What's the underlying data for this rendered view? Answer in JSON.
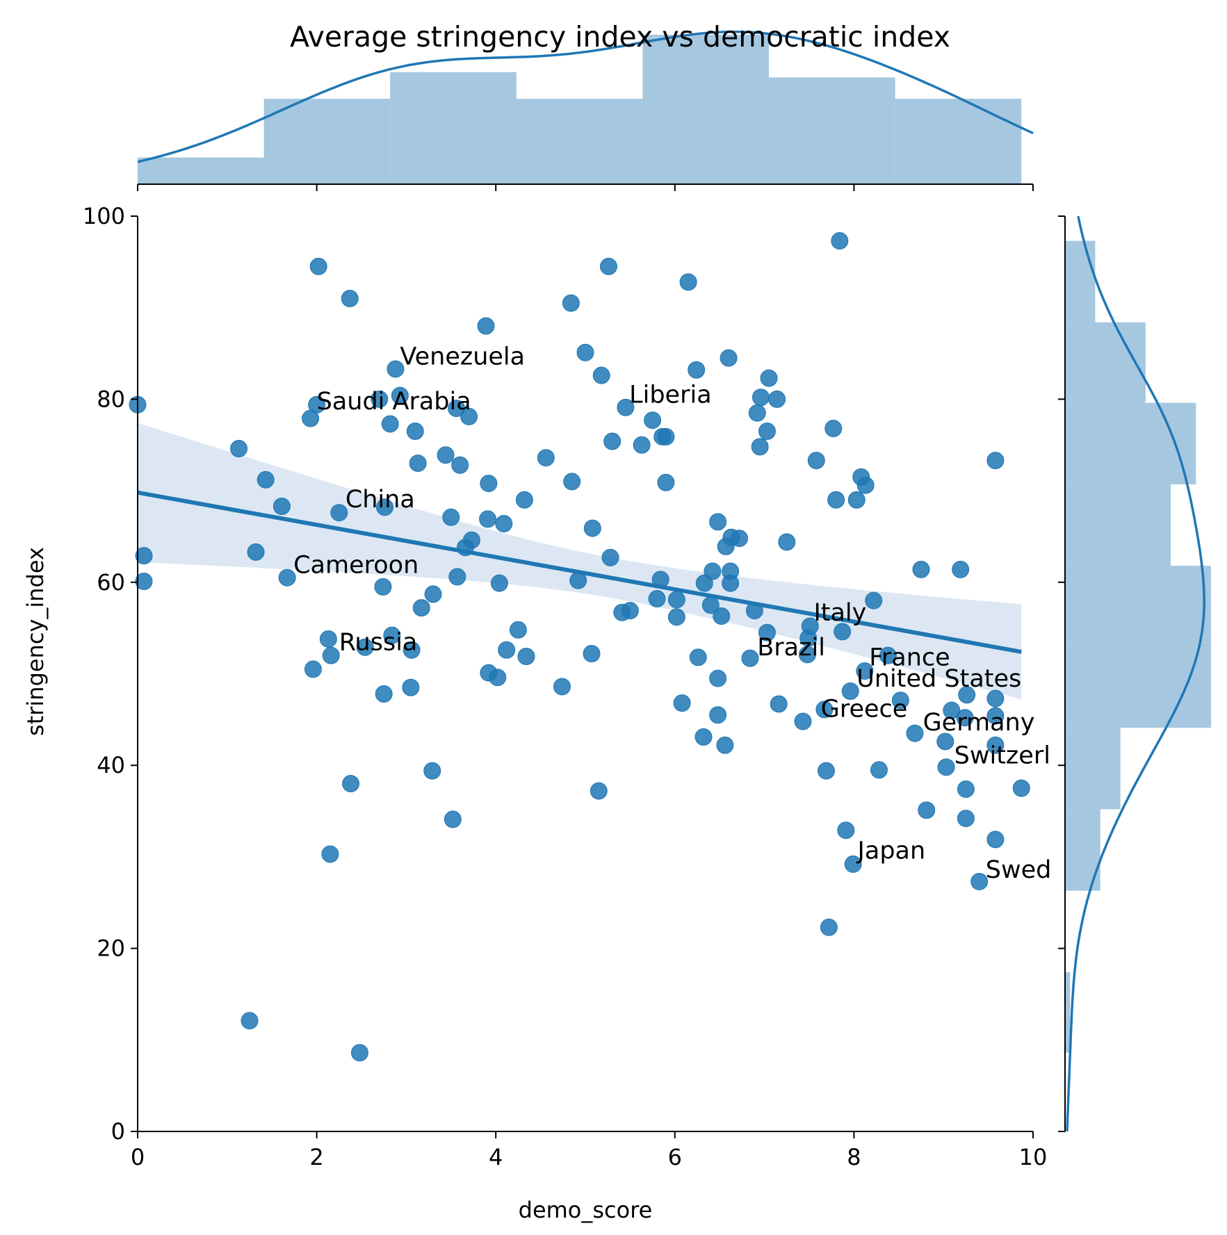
{
  "chart_data": {
    "type": "scatter",
    "title": "Average stringency index vs democratic index",
    "xlabel": "demo_score",
    "ylabel": "stringency_index",
    "xlim": [
      0,
      10
    ],
    "ylim": [
      0,
      100
    ],
    "xticks": [
      "0",
      "2",
      "4",
      "6",
      "8",
      "10"
    ],
    "yticks": [
      "0",
      "20",
      "40",
      "60",
      "80",
      "100"
    ],
    "regression": {
      "x": [
        0,
        9.87
      ],
      "y": [
        69.8,
        52.4
      ],
      "ci_low_at_0": 62.2,
      "ci_high_at_0": 77.4,
      "ci_low_at_end": 47.8,
      "ci_high_at_end": 58.2
    },
    "marginal_x_hist": {
      "bin_edges": [
        0,
        1.41,
        2.82,
        4.23,
        5.64,
        7.05,
        8.46,
        9.87
      ],
      "counts": [
        5,
        16,
        21,
        16,
        28,
        20,
        16
      ]
    },
    "marginal_y_hist": {
      "bin_edges": [
        8.6,
        17.4,
        26.3,
        35.2,
        44.1,
        52.9,
        61.8,
        70.7,
        79.6,
        88.4,
        97.3
      ],
      "counts": [
        1,
        0,
        7,
        11,
        29,
        29,
        21,
        26,
        16,
        6
      ]
    },
    "points": [
      [
        0.0,
        79.4
      ],
      [
        0.07,
        62.9
      ],
      [
        0.07,
        60.1
      ],
      [
        1.13,
        74.6
      ],
      [
        1.25,
        12.1
      ],
      [
        1.32,
        63.3
      ],
      [
        1.43,
        71.2
      ],
      [
        1.61,
        68.3
      ],
      [
        1.67,
        60.5
      ],
      [
        1.93,
        77.9
      ],
      [
        1.96,
        50.5
      ],
      [
        2.02,
        94.5
      ],
      [
        2.0,
        79.4
      ],
      [
        2.13,
        53.8
      ],
      [
        2.15,
        30.3
      ],
      [
        2.16,
        52.0
      ],
      [
        2.25,
        67.6
      ],
      [
        2.37,
        91.0
      ],
      [
        2.38,
        38.0
      ],
      [
        2.48,
        8.6
      ],
      [
        2.54,
        52.9
      ],
      [
        2.7,
        80.0
      ],
      [
        2.74,
        59.5
      ],
      [
        2.75,
        47.8
      ],
      [
        2.76,
        68.2
      ],
      [
        2.82,
        77.3
      ],
      [
        2.84,
        54.2
      ],
      [
        2.88,
        83.3
      ],
      [
        2.93,
        80.4
      ],
      [
        3.05,
        48.5
      ],
      [
        3.06,
        52.6
      ],
      [
        3.1,
        76.5
      ],
      [
        3.13,
        73.0
      ],
      [
        3.17,
        57.2
      ],
      [
        3.29,
        39.4
      ],
      [
        3.3,
        58.7
      ],
      [
        3.44,
        73.9
      ],
      [
        3.5,
        67.1
      ],
      [
        3.52,
        34.1
      ],
      [
        3.56,
        79.0
      ],
      [
        3.57,
        60.6
      ],
      [
        3.6,
        72.8
      ],
      [
        3.66,
        63.8
      ],
      [
        3.7,
        78.1
      ],
      [
        3.73,
        64.6
      ],
      [
        3.89,
        88.0
      ],
      [
        3.91,
        66.9
      ],
      [
        3.92,
        70.8
      ],
      [
        3.92,
        50.1
      ],
      [
        4.02,
        49.6
      ],
      [
        4.04,
        59.9
      ],
      [
        4.09,
        66.4
      ],
      [
        4.12,
        52.6
      ],
      [
        4.25,
        54.8
      ],
      [
        4.32,
        69.0
      ],
      [
        4.34,
        51.9
      ],
      [
        4.56,
        73.6
      ],
      [
        4.74,
        48.6
      ],
      [
        4.84,
        90.5
      ],
      [
        4.85,
        71.0
      ],
      [
        4.92,
        60.2
      ],
      [
        5.0,
        85.1
      ],
      [
        5.07,
        52.2
      ],
      [
        5.08,
        65.9
      ],
      [
        5.15,
        37.2
      ],
      [
        5.18,
        82.6
      ],
      [
        5.26,
        94.5
      ],
      [
        5.28,
        62.7
      ],
      [
        5.3,
        75.4
      ],
      [
        5.41,
        56.7
      ],
      [
        5.45,
        79.1
      ],
      [
        5.5,
        56.9
      ],
      [
        5.63,
        75.0
      ],
      [
        5.75,
        77.7
      ],
      [
        5.8,
        58.2
      ],
      [
        5.84,
        60.3
      ],
      [
        5.86,
        75.9
      ],
      [
        5.9,
        75.9
      ],
      [
        5.9,
        70.9
      ],
      [
        6.02,
        56.2
      ],
      [
        6.02,
        58.1
      ],
      [
        6.08,
        46.8
      ],
      [
        6.15,
        92.8
      ],
      [
        6.24,
        83.2
      ],
      [
        6.26,
        51.8
      ],
      [
        6.32,
        43.1
      ],
      [
        6.33,
        59.9
      ],
      [
        6.4,
        57.5
      ],
      [
        6.42,
        61.2
      ],
      [
        6.48,
        66.6
      ],
      [
        6.48,
        45.5
      ],
      [
        6.48,
        49.5
      ],
      [
        6.52,
        56.3
      ],
      [
        6.56,
        42.2
      ],
      [
        6.57,
        63.9
      ],
      [
        6.6,
        84.5
      ],
      [
        6.62,
        59.9
      ],
      [
        6.62,
        61.2
      ],
      [
        6.63,
        64.9
      ],
      [
        6.72,
        64.8
      ],
      [
        6.84,
        51.7
      ],
      [
        6.89,
        56.9
      ],
      [
        6.92,
        78.5
      ],
      [
        6.95,
        74.8
      ],
      [
        6.96,
        80.2
      ],
      [
        7.03,
        54.5
      ],
      [
        7.03,
        76.5
      ],
      [
        7.05,
        82.3
      ],
      [
        7.14,
        80.0
      ],
      [
        7.16,
        46.7
      ],
      [
        7.25,
        64.4
      ],
      [
        7.43,
        44.8
      ],
      [
        7.48,
        52.1
      ],
      [
        7.49,
        53.9
      ],
      [
        7.51,
        55.2
      ],
      [
        7.58,
        73.3
      ],
      [
        7.67,
        46.1
      ],
      [
        7.69,
        39.4
      ],
      [
        7.72,
        22.3
      ],
      [
        7.77,
        76.8
      ],
      [
        7.8,
        69.0
      ],
      [
        7.84,
        97.3
      ],
      [
        7.87,
        54.6
      ],
      [
        7.91,
        32.9
      ],
      [
        7.96,
        48.1
      ],
      [
        7.99,
        29.2
      ],
      [
        8.03,
        69.0
      ],
      [
        8.08,
        71.5
      ],
      [
        8.12,
        50.3
      ],
      [
        8.13,
        70.6
      ],
      [
        8.22,
        58.0
      ],
      [
        8.28,
        39.5
      ],
      [
        8.38,
        52.0
      ],
      [
        8.52,
        47.1
      ],
      [
        8.68,
        43.5
      ],
      [
        8.75,
        61.4
      ],
      [
        8.81,
        35.1
      ],
      [
        9.02,
        42.6
      ],
      [
        9.03,
        39.8
      ],
      [
        9.09,
        46.0
      ],
      [
        9.19,
        61.4
      ],
      [
        9.24,
        45.2
      ],
      [
        9.25,
        37.4
      ],
      [
        9.25,
        34.2
      ],
      [
        9.26,
        47.7
      ],
      [
        9.4,
        27.3
      ],
      [
        9.58,
        73.3
      ],
      [
        9.58,
        42.2
      ],
      [
        9.58,
        31.9
      ],
      [
        9.58,
        45.4
      ],
      [
        9.58,
        47.3
      ],
      [
        9.87,
        37.5
      ]
    ],
    "annotations": [
      {
        "text": "Venezuela",
        "x": 2.93,
        "y": 83.8
      },
      {
        "text": "Saudi Arabia",
        "x": 2.0,
        "y": 78.9
      },
      {
        "text": "Liberia",
        "x": 5.49,
        "y": 79.6
      },
      {
        "text": "China",
        "x": 2.32,
        "y": 68.2
      },
      {
        "text": "Cameroon",
        "x": 1.74,
        "y": 61.0
      },
      {
        "text": "Russia",
        "x": 2.25,
        "y": 52.6
      },
      {
        "text": "Italy",
        "x": 7.55,
        "y": 55.8
      },
      {
        "text": "Brazil",
        "x": 6.92,
        "y": 52.0
      },
      {
        "text": "France",
        "x": 8.17,
        "y": 50.9
      },
      {
        "text": "United States",
        "x": 8.03,
        "y": 48.6
      },
      {
        "text": "Greece",
        "x": 7.63,
        "y": 45.3
      },
      {
        "text": "Germany",
        "x": 8.77,
        "y": 43.8
      },
      {
        "text": "Switzerl",
        "x": 9.12,
        "y": 40.2
      },
      {
        "text": "Japan",
        "x": 8.04,
        "y": 29.8
      },
      {
        "text": "Swed",
        "x": 9.47,
        "y": 27.7
      }
    ],
    "colors": {
      "points": "#1f77b4",
      "regression_line": "#1f77b4",
      "confidence_band": "#dce7f3",
      "histogram": "#a6c7e0",
      "kde": "#1f77b4"
    }
  }
}
